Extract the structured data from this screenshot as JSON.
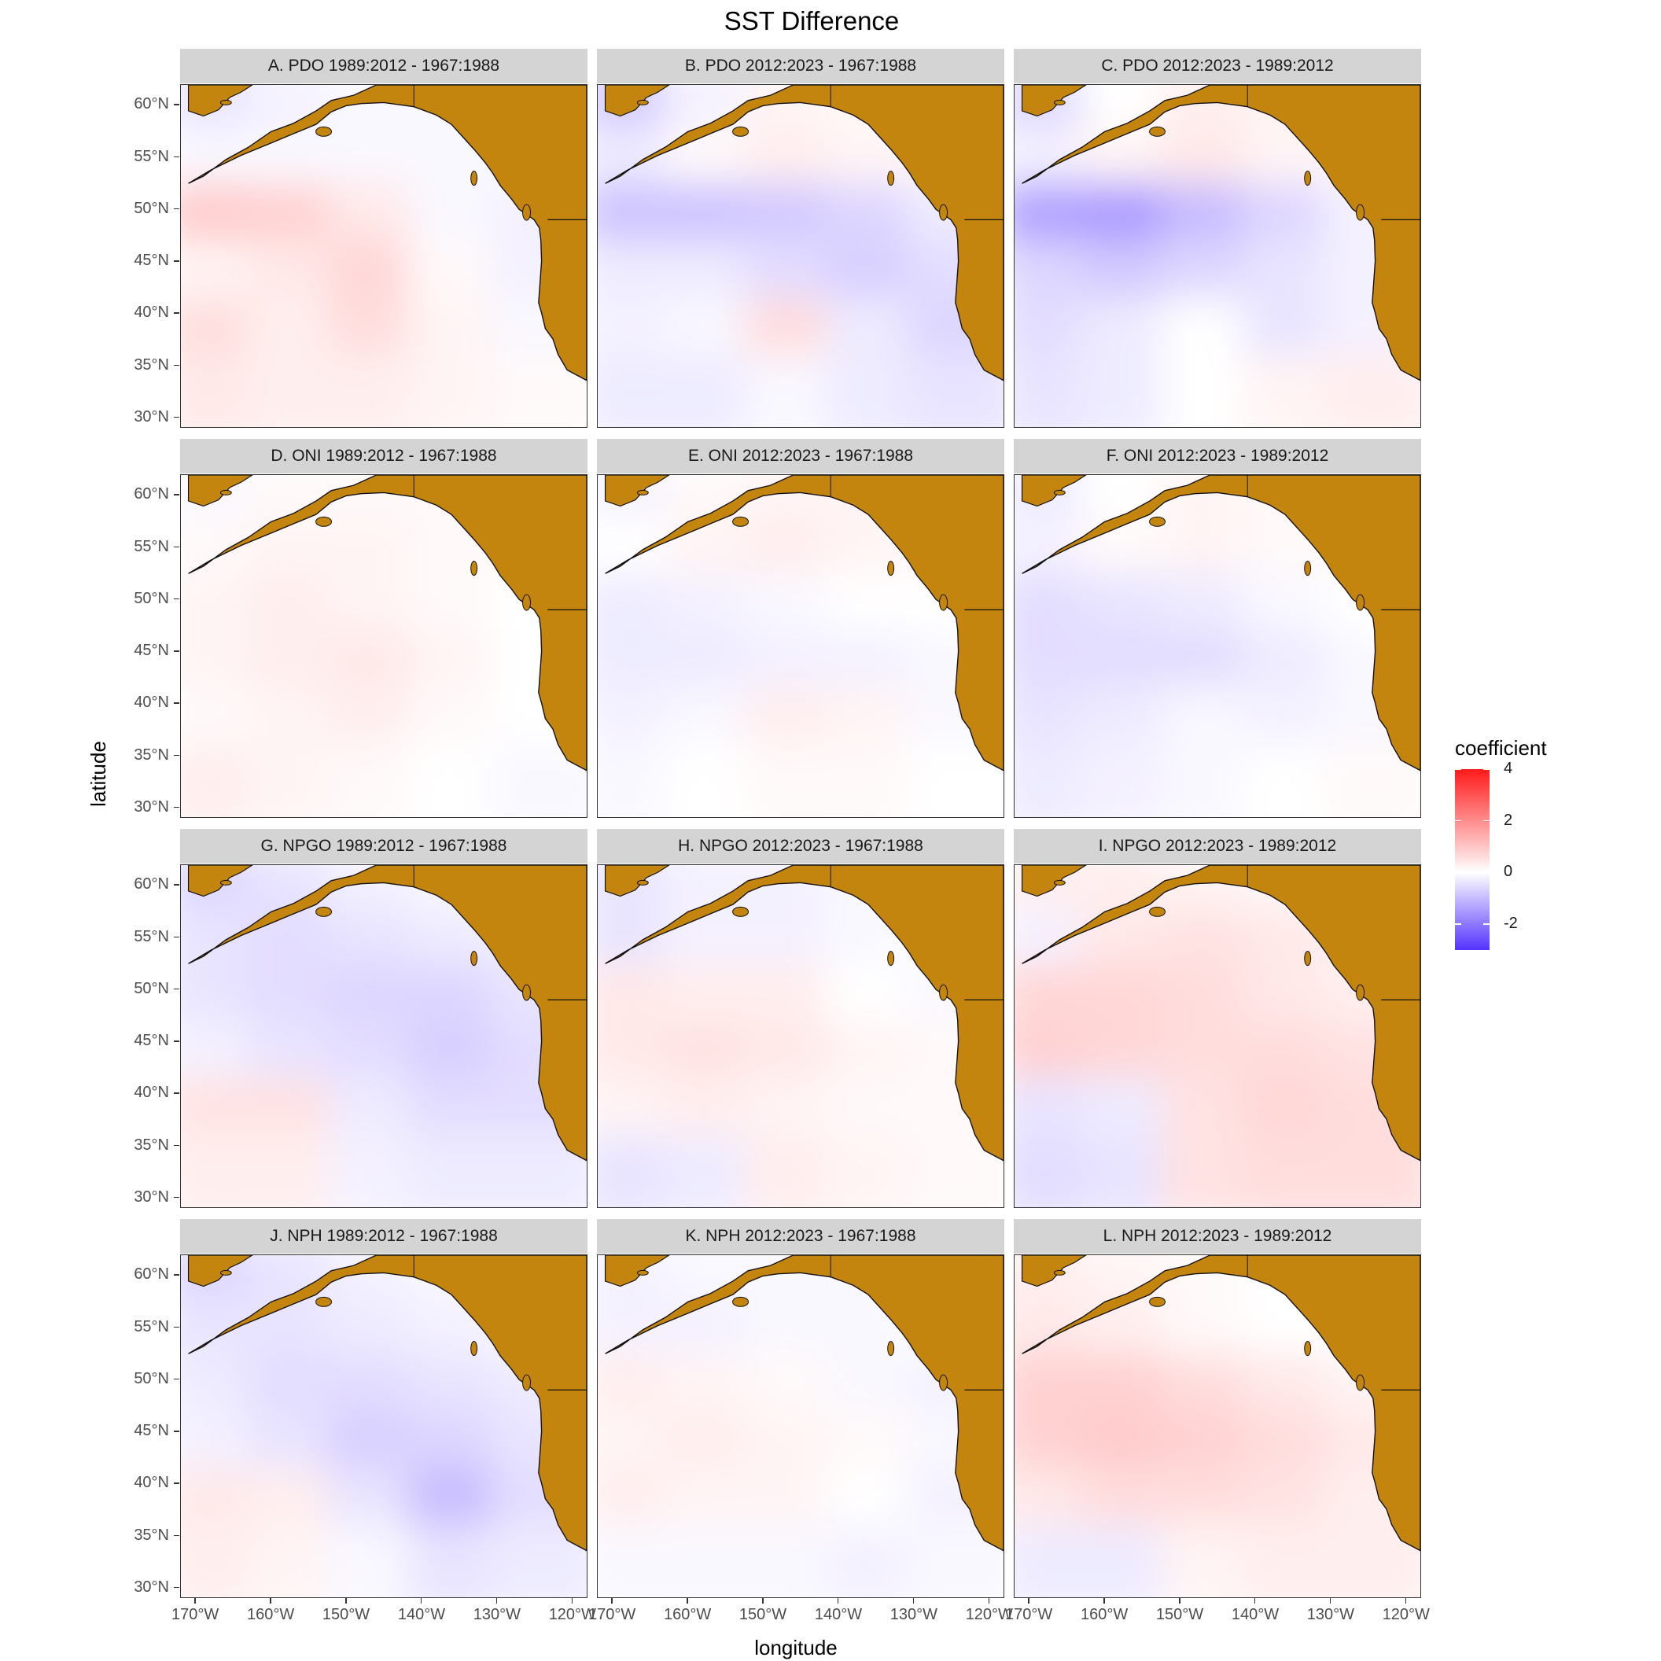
{
  "title": "SST Difference",
  "x_axis_title": "longitude",
  "y_axis_title": "latitude",
  "colors": {
    "land": "#c4850f",
    "strip_background": "#d4d4d4",
    "low": "#5533ff",
    "mid": "#ffffff",
    "high": "#ff1a1a"
  },
  "legend": {
    "title": "coefficient",
    "labels": [
      "4",
      "2",
      "0",
      "-2"
    ]
  },
  "chart_data": {
    "type": "heatmap",
    "subtype": "faceted map",
    "x_ticks": [
      "170°W",
      "160°W",
      "150°W",
      "140°W",
      "130°W",
      "120°W"
    ],
    "y_ticks": [
      "60°N",
      "55°N",
      "50°N",
      "45°N",
      "40°N",
      "35°N",
      "30°N"
    ],
    "xlim": [
      -172,
      -118
    ],
    "ylim": [
      29,
      62
    ],
    "color_range": [
      -3,
      4
    ],
    "panels": [
      {
        "label": "A. PDO 1989:2012 - 1967:1988",
        "values": [
          [
            -0.4,
            -0.2,
            -0.1,
            -0.1,
            -0.1
          ],
          [
            -0.1,
            -0.1,
            -0.1,
            -0.1,
            -0.1
          ],
          [
            0.9,
            0.8,
            0.4,
            -0.1,
            -0.2
          ],
          [
            0.2,
            0.4,
            0.7,
            0.1,
            -0.2
          ],
          [
            0.6,
            0.3,
            0.6,
            0.2,
            -0.1
          ],
          [
            0.4,
            0.3,
            0.3,
            0.2,
            0.1
          ]
        ]
      },
      {
        "label": "B. PDO 2012:2023 - 1967:1988",
        "values": [
          [
            -0.8,
            -0.2,
            0.2,
            0.1,
            0.1
          ],
          [
            -0.3,
            0.1,
            0.3,
            0.2,
            0.1
          ],
          [
            -0.9,
            -0.9,
            -0.8,
            -0.6,
            -0.3
          ],
          [
            -0.3,
            -0.3,
            -0.5,
            -0.7,
            -0.5
          ],
          [
            -0.2,
            -0.1,
            0.6,
            -0.3,
            -0.6
          ],
          [
            -0.3,
            -0.3,
            -0.1,
            -0.3,
            -0.4
          ]
        ]
      },
      {
        "label": "C. PDO 2012:2023 - 1989:2012",
        "values": [
          [
            -0.6,
            0.0,
            0.3,
            0.2,
            0.1
          ],
          [
            -0.2,
            0.2,
            0.4,
            0.2,
            0.1
          ],
          [
            -1.4,
            -1.5,
            -1.0,
            -0.6,
            -0.2
          ],
          [
            -0.6,
            -0.8,
            -0.6,
            -0.4,
            -0.2
          ],
          [
            -0.5,
            -0.3,
            0.0,
            -0.4,
            -0.2
          ],
          [
            -0.4,
            -0.3,
            0.0,
            0.2,
            0.3
          ]
        ]
      },
      {
        "label": "D. ONI 1989:2012 - 1967:1988",
        "values": [
          [
            -0.1,
            0.1,
            0.1,
            0.1,
            0.1
          ],
          [
            0.1,
            0.2,
            0.2,
            0.1,
            0.1
          ],
          [
            0.2,
            0.3,
            0.2,
            0.1,
            0.0
          ],
          [
            0.2,
            0.3,
            0.4,
            0.2,
            0.0
          ],
          [
            0.1,
            0.2,
            0.3,
            0.1,
            0.0
          ],
          [
            0.3,
            0.2,
            0.1,
            0.0,
            -0.1
          ]
        ]
      },
      {
        "label": "E. ONI 2012:2023 - 1967:1988",
        "values": [
          [
            -0.2,
            0.1,
            0.2,
            0.2,
            0.1
          ],
          [
            0.0,
            0.2,
            0.3,
            0.2,
            0.1
          ],
          [
            -0.3,
            -0.2,
            -0.1,
            0.0,
            0.0
          ],
          [
            -0.3,
            -0.3,
            -0.2,
            -0.2,
            -0.1
          ],
          [
            -0.2,
            -0.1,
            0.3,
            0.2,
            -0.1
          ],
          [
            -0.1,
            0.0,
            0.1,
            0.1,
            0.0
          ]
        ]
      },
      {
        "label": "F. ONI 2012:2023 - 1989:2012",
        "values": [
          [
            -0.3,
            0.0,
            0.2,
            0.1,
            0.1
          ],
          [
            -0.2,
            0.1,
            0.2,
            0.1,
            0.1
          ],
          [
            -0.5,
            -0.4,
            -0.3,
            -0.1,
            0.0
          ],
          [
            -0.5,
            -0.5,
            -0.5,
            -0.3,
            -0.1
          ],
          [
            -0.4,
            -0.3,
            -0.1,
            -0.2,
            -0.1
          ],
          [
            -0.3,
            -0.2,
            -0.1,
            0.0,
            0.1
          ]
        ]
      },
      {
        "label": "G. NPGO 1989:2012 - 1967:1988",
        "values": [
          [
            -0.6,
            -0.4,
            -0.2,
            -0.1,
            0.0
          ],
          [
            -0.4,
            -0.5,
            -0.4,
            -0.3,
            -0.2
          ],
          [
            -0.4,
            -0.5,
            -0.6,
            -0.6,
            -0.4
          ],
          [
            -0.2,
            -0.4,
            -0.5,
            -0.7,
            -0.5
          ],
          [
            0.5,
            0.5,
            -0.3,
            -0.5,
            -0.5
          ],
          [
            0.3,
            0.3,
            -0.2,
            -0.3,
            -0.3
          ]
        ]
      },
      {
        "label": "H. NPGO 2012:2023 - 1967:1988",
        "values": [
          [
            -0.4,
            -0.2,
            -0.2,
            -0.1,
            0.0
          ],
          [
            -0.4,
            -0.2,
            -0.2,
            -0.1,
            0.0
          ],
          [
            0.4,
            0.3,
            0.3,
            0.0,
            -0.1
          ],
          [
            0.4,
            0.5,
            0.4,
            0.2,
            0.1
          ],
          [
            0.2,
            0.3,
            0.2,
            0.1,
            0.1
          ],
          [
            -0.4,
            -0.3,
            0.3,
            0.2,
            0.1
          ]
        ]
      },
      {
        "label": "I. NPGO 2012:2023 - 1989:2012",
        "values": [
          [
            0.3,
            0.3,
            0.2,
            0.1,
            0.1
          ],
          [
            -0.2,
            0.4,
            0.5,
            0.4,
            0.2
          ],
          [
            0.7,
            0.7,
            0.6,
            0.4,
            0.3
          ],
          [
            0.8,
            0.7,
            0.6,
            0.6,
            0.5
          ],
          [
            -0.4,
            -0.3,
            0.5,
            0.7,
            0.6
          ],
          [
            -0.5,
            -0.4,
            0.5,
            0.6,
            0.6
          ]
        ]
      },
      {
        "label": "J. NPH 1989:2012 - 1967:1988",
        "values": [
          [
            -0.6,
            -0.4,
            -0.2,
            -0.1,
            0.0
          ],
          [
            -0.4,
            -0.4,
            -0.3,
            -0.2,
            -0.1
          ],
          [
            -0.3,
            -0.5,
            -0.5,
            -0.4,
            -0.3
          ],
          [
            -0.2,
            -0.4,
            -0.7,
            -0.6,
            -0.4
          ],
          [
            0.4,
            0.3,
            -0.4,
            -1.0,
            -0.5
          ],
          [
            0.3,
            0.2,
            -0.1,
            -0.4,
            -0.3
          ]
        ]
      },
      {
        "label": "K. NPH 2012:2023 - 1967:1988",
        "values": [
          [
            -0.2,
            -0.1,
            -0.1,
            -0.1,
            0.0
          ],
          [
            -0.2,
            -0.2,
            -0.1,
            -0.1,
            0.0
          ],
          [
            0.3,
            0.2,
            0.1,
            -0.1,
            -0.2
          ],
          [
            0.2,
            0.3,
            0.2,
            0.1,
            -0.1
          ],
          [
            0.3,
            0.2,
            0.2,
            0.0,
            -0.2
          ],
          [
            -0.1,
            -0.1,
            -0.1,
            -0.2,
            -0.1
          ]
        ]
      },
      {
        "label": "L. NPH 2012:2023 - 1989:2012",
        "values": [
          [
            0.3,
            0.2,
            0.1,
            0.0,
            0.0
          ],
          [
            0.4,
            0.3,
            0.1,
            0.0,
            0.0
          ],
          [
            0.8,
            0.8,
            0.6,
            0.4,
            0.2
          ],
          [
            0.8,
            0.9,
            0.8,
            0.6,
            0.4
          ],
          [
            0.4,
            0.6,
            0.6,
            0.5,
            0.3
          ],
          [
            -0.3,
            -0.3,
            0.2,
            0.3,
            0.3
          ]
        ]
      }
    ]
  }
}
